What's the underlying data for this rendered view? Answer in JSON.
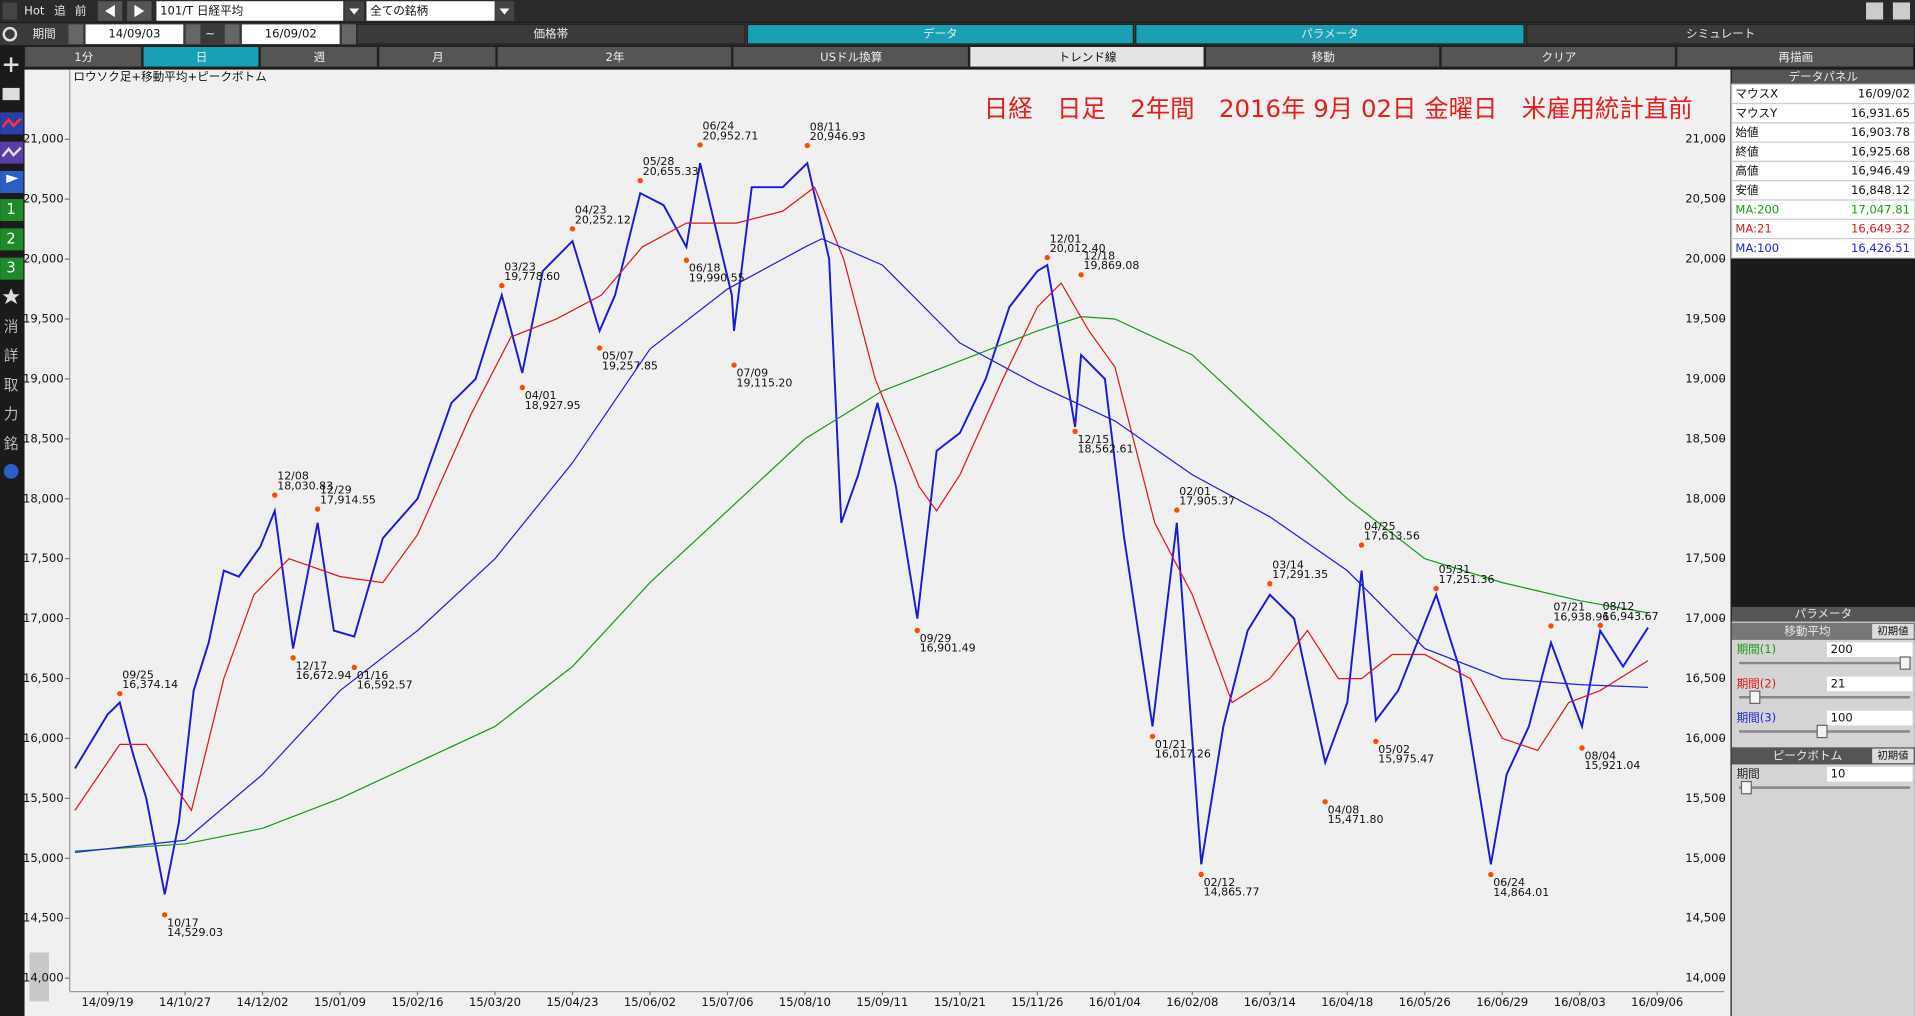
{
  "toolbar": {
    "hot": "Hot",
    "chase": "追",
    "prev": "前",
    "symbol": "101/T 日経平均",
    "universe": "全ての銘柄",
    "period_label": "期間",
    "from": "14/09/03",
    "tilde": "~",
    "to": "16/09/02",
    "tabs": [
      "価格帯",
      "データ",
      "パラメータ",
      "シミュレート"
    ],
    "buttons": [
      "1分",
      "日",
      "週",
      "月",
      "2年",
      "USドル換算",
      "トレンド線",
      "移動",
      "クリア",
      "再描画"
    ]
  },
  "sidebar": [
    "1",
    "2",
    "3",
    "消",
    "詳",
    "取",
    "力",
    "銘"
  ],
  "chart_data": {
    "type": "line",
    "caption": "ロウソク足+移動平均+ピークボトム",
    "title": "日経　日足　2年間　2016年 9月 02日 金曜日　米雇用統計直前",
    "ylim": [
      13888,
      21581
    ],
    "yticks": [
      {
        "value": 14000,
        "label": "14,000"
      },
      {
        "value": 14500,
        "label": "14,500"
      },
      {
        "value": 15000,
        "label": "15,000"
      },
      {
        "value": 15500,
        "label": "15,500"
      },
      {
        "value": 16000,
        "label": "16,000"
      },
      {
        "value": 16500,
        "label": "16,500"
      },
      {
        "value": 17000,
        "label": "17,000"
      },
      {
        "value": 17500,
        "label": "17,500"
      },
      {
        "value": 18000,
        "label": "18,000"
      },
      {
        "value": 18500,
        "label": "18,500"
      },
      {
        "value": 19000,
        "label": "19,000"
      },
      {
        "value": 19500,
        "label": "19,500"
      },
      {
        "value": 20000,
        "label": "20,000"
      },
      {
        "value": 20500,
        "label": "20,500"
      },
      {
        "value": 21000,
        "label": "21,000"
      }
    ],
    "xticks": [
      "14/09/19",
      "14/10/27",
      "14/12/02",
      "15/01/09",
      "15/02/16",
      "15/03/20",
      "15/04/23",
      "15/06/02",
      "15/07/06",
      "15/08/10",
      "15/09/11",
      "15/10/21",
      "15/11/26",
      "16/01/04",
      "16/02/08",
      "16/03/14",
      "16/04/18",
      "16/05/26",
      "16/06/29",
      "16/08/03",
      "16/09/06"
    ],
    "series": [
      {
        "color": "#1a1ad8",
        "x": [
          "14/09/03",
          "14/09/19",
          "14/09/25",
          "14/10/01",
          "14/10/08",
          "14/10/17",
          "14/10/24",
          "14/10/31",
          "14/11/07",
          "14/11/14",
          "14/11/21",
          "14/12/01",
          "14/12/08",
          "14/12/17",
          "14/12/29",
          "15/01/06",
          "15/01/16",
          "15/01/30",
          "15/02/16",
          "15/03/02",
          "15/03/12",
          "15/03/23",
          "15/04/01",
          "15/04/10",
          "15/04/23",
          "15/05/07",
          "15/05/15",
          "15/05/28",
          "15/06/08",
          "15/06/18",
          "15/06/24",
          "15/07/08",
          "15/07/09",
          "15/07/17",
          "15/07/31",
          "15/08/11",
          "15/08/20",
          "15/08/25",
          "15/09/01",
          "15/09/09",
          "15/09/18",
          "15/09/29",
          "15/10/09",
          "15/10/21",
          "15/11/02",
          "15/11/13",
          "15/11/26",
          "15/12/01",
          "15/12/15",
          "15/12/18",
          "15/12/30",
          "16/01/08",
          "16/01/21",
          "16/02/01",
          "16/02/12",
          "16/02/22",
          "16/03/04",
          "16/03/14",
          "16/03/25",
          "16/04/08",
          "16/04/18",
          "16/04/25",
          "16/05/02",
          "16/05/13",
          "16/05/31",
          "16/06/10",
          "16/06/24",
          "16/07/01",
          "16/07/11",
          "16/07/21",
          "16/08/04",
          "16/08/12",
          "16/08/22",
          "16/09/02"
        ],
        "values": [
          15750,
          16200,
          16300,
          15900,
          15500,
          14700,
          15300,
          16400,
          16800,
          17400,
          17350,
          17600,
          17900,
          16750,
          17800,
          16900,
          16850,
          17670,
          18000,
          18800,
          19000,
          19700,
          19050,
          19900,
          20150,
          19400,
          19700,
          20550,
          20450,
          20100,
          20800,
          19700,
          19400,
          20600,
          20600,
          20800,
          20000,
          17800,
          18200,
          18800,
          18100,
          17000,
          18400,
          18550,
          19000,
          19600,
          19900,
          19950,
          18600,
          19200,
          19000,
          17700,
          16100,
          17800,
          14950,
          16100,
          16900,
          17200,
          17000,
          15800,
          16300,
          17400,
          16150,
          16400,
          17200,
          16600,
          14950,
          15700,
          16100,
          16800,
          16100,
          16900,
          16600,
          16925.68
        ]
      },
      {
        "name": "MA:200",
        "color": "#1a9a1a",
        "x": [
          "14/09/03",
          "14/10/27",
          "14/12/02",
          "15/01/09",
          "15/02/16",
          "15/03/20",
          "15/04/23",
          "15/06/02",
          "15/07/06",
          "15/08/10",
          "15/09/11",
          "15/10/21",
          "15/11/26",
          "15/12/18",
          "16/01/04",
          "16/02/08",
          "16/03/14",
          "16/04/18",
          "16/05/26",
          "16/06/29",
          "16/08/03",
          "16/09/02"
        ],
        "values": [
          15060,
          15120,
          15250,
          15500,
          15800,
          16100,
          16600,
          17300,
          17900,
          18500,
          18900,
          19150,
          19400,
          19520,
          19500,
          19200,
          18600,
          18000,
          17500,
          17300,
          17150,
          17047.81
        ]
      },
      {
        "name": "MA:21",
        "color": "#e01818",
        "x": [
          "14/09/03",
          "14/09/25",
          "14/10/08",
          "14/10/30",
          "14/11/14",
          "14/11/28",
          "14/12/15",
          "15/01/09",
          "15/01/30",
          "15/02/16",
          "15/03/10",
          "15/03/27",
          "15/04/16",
          "15/05/08",
          "15/05/29",
          "15/06/18",
          "15/07/10",
          "15/07/31",
          "15/08/14",
          "15/08/26",
          "15/09/08",
          "15/09/30",
          "15/10/09",
          "15/10/21",
          "15/11/10",
          "15/11/26",
          "15/12/08",
          "15/12/22",
          "16/01/04",
          "16/01/22",
          "16/02/08",
          "16/02/26",
          "16/03/14",
          "16/03/31",
          "16/04/14",
          "16/04/25",
          "16/05/10",
          "16/05/26",
          "16/06/15",
          "16/06/29",
          "16/07/15",
          "16/07/29",
          "16/08/12",
          "16/09/02"
        ],
        "values": [
          15400,
          15950,
          15950,
          15400,
          16500,
          17200,
          17500,
          17350,
          17300,
          17700,
          18700,
          19350,
          19500,
          19700,
          20100,
          20300,
          20300,
          20400,
          20600,
          20000,
          19000,
          18100,
          17900,
          18200,
          19000,
          19600,
          19800,
          19400,
          19100,
          17800,
          17200,
          16300,
          16500,
          16900,
          16500,
          16500,
          16700,
          16700,
          16500,
          16000,
          15900,
          16300,
          16400,
          16649.32
        ]
      },
      {
        "name": "MA:100",
        "color": "#2020e0",
        "x": [
          "14/09/03",
          "14/10/27",
          "14/12/02",
          "15/01/09",
          "15/02/16",
          "15/03/20",
          "15/04/23",
          "15/06/02",
          "15/07/06",
          "15/08/10",
          "15/08/17",
          "15/09/11",
          "15/10/21",
          "15/11/26",
          "16/01/04",
          "16/02/08",
          "16/03/14",
          "16/04/18",
          "16/05/26",
          "16/06/29",
          "16/08/03",
          "16/09/02"
        ],
        "values": [
          15050,
          15150,
          15700,
          16400,
          16900,
          17500,
          18300,
          19250,
          19750,
          20100,
          20170,
          19950,
          19300,
          18950,
          18650,
          18200,
          17850,
          17400,
          16750,
          16500,
          16450,
          16426.51
        ]
      }
    ],
    "marker_color": "#ff4a00",
    "annotations": [
      {
        "x": "14/09/25",
        "date": "09/25",
        "value": 16374.14,
        "value_label": "16,374.14"
      },
      {
        "x": "14/10/17",
        "date": "10/17",
        "value": 14529.03,
        "value_label": "14,529.03"
      },
      {
        "x": "14/12/08",
        "date": "12/08",
        "value": 18030.83,
        "value_label": "18,030.83"
      },
      {
        "x": "14/12/17",
        "date": "12/17",
        "value": 16672.94,
        "value_label": "16,672.94"
      },
      {
        "x": "14/12/29",
        "date": "12/29",
        "value": 17914.55,
        "value_label": "17,914.55"
      },
      {
        "x": "15/01/16",
        "date": "01/16",
        "value": 16592.57,
        "value_label": "16,592.57"
      },
      {
        "x": "15/03/23",
        "date": "03/23",
        "value": 19778.6,
        "value_label": "19,778.60"
      },
      {
        "x": "15/04/01",
        "date": "04/01",
        "value": 18927.95,
        "value_label": "18,927.95"
      },
      {
        "x": "15/04/23",
        "date": "04/23",
        "value": 20252.12,
        "value_label": "20,252.12"
      },
      {
        "x": "15/05/07",
        "date": "05/07",
        "value": 19257.85,
        "value_label": "19,257.85"
      },
      {
        "x": "15/05/28",
        "date": "05/28",
        "value": 20655.33,
        "value_label": "20,655.33"
      },
      {
        "x": "15/06/18",
        "date": "06/18",
        "value": 19990.55,
        "value_label": "19,990.55"
      },
      {
        "x": "15/06/24",
        "date": "06/24",
        "value": 20952.71,
        "value_label": "20,952.71"
      },
      {
        "x": "15/07/09",
        "date": "07/09",
        "value": 19115.2,
        "value_label": "19,115.20"
      },
      {
        "x": "15/08/11",
        "date": "08/11",
        "value": 20946.93,
        "value_label": "20,946.93"
      },
      {
        "x": "15/09/29",
        "date": "09/29",
        "value": 16901.49,
        "value_label": "16,901.49"
      },
      {
        "x": "15/12/01",
        "date": "12/01",
        "value": 20012.4,
        "value_label": "20,012.40"
      },
      {
        "x": "15/12/15",
        "date": "12/15",
        "value": 18562.61,
        "value_label": "18,562.61"
      },
      {
        "x": "15/12/18",
        "date": "12/18",
        "value": 19869.08,
        "value_label": "19,869.08"
      },
      {
        "x": "16/01/21",
        "date": "01/21",
        "value": 16017.26,
        "value_label": "16,017.26"
      },
      {
        "x": "16/02/01",
        "date": "02/01",
        "value": 17905.37,
        "value_label": "17,905.37"
      },
      {
        "x": "16/02/12",
        "date": "02/12",
        "value": 14865.77,
        "value_label": "14,865.77"
      },
      {
        "x": "16/03/14",
        "date": "03/14",
        "value": 17291.35,
        "value_label": "17,291.35"
      },
      {
        "x": "16/04/08",
        "date": "04/08",
        "value": 15471.8,
        "value_label": "15,471.80"
      },
      {
        "x": "16/04/25",
        "date": "04/25",
        "value": 17613.56,
        "value_label": "17,613.56"
      },
      {
        "x": "16/05/02",
        "date": "05/02",
        "value": 15975.47,
        "value_label": "15,975.47"
      },
      {
        "x": "16/05/31",
        "date": "05/31",
        "value": 17251.36,
        "value_label": "17,251.36"
      },
      {
        "x": "16/06/24",
        "date": "06/24",
        "value": 14864.01,
        "value_label": "14,864.01"
      },
      {
        "x": "16/07/21",
        "date": "07/21",
        "value": 16938.96,
        "value_label": "16,938.96"
      },
      {
        "x": "16/08/04",
        "date": "08/04",
        "value": 15921.04,
        "value_label": "15,921.04"
      },
      {
        "x": "16/08/12",
        "date": "08/12",
        "value": 16943.67,
        "value_label": "16,943.67"
      }
    ]
  },
  "data_panel": {
    "title": "データパネル",
    "rows": [
      {
        "label": "マウスX",
        "value": "16/09/02"
      },
      {
        "label": "マウスY",
        "value": "16,931.65"
      },
      {
        "label": "始値",
        "value": "16,903.78"
      },
      {
        "label": "終値",
        "value": "16,925.68"
      },
      {
        "label": "高値",
        "value": "16,946.49"
      },
      {
        "label": "安値",
        "value": "16,848.12"
      },
      {
        "label": "MA:200",
        "value": "17,047.81",
        "color": "#1a9a1a"
      },
      {
        "label": "MA:21",
        "value": "16,649.32",
        "color": "#e01818"
      },
      {
        "label": "MA:100",
        "value": "16,426.51",
        "color": "#2020e0"
      }
    ]
  },
  "parameter_panel": {
    "title": "パラメータ",
    "sections": [
      {
        "title": "移動平均",
        "reset": "初期値",
        "params": [
          {
            "label": "期間(1)",
            "value": 200,
            "color": "#1a9a1a"
          },
          {
            "label": "期間(2)",
            "value": 21,
            "color": "#e01818"
          },
          {
            "label": "期間(3)",
            "value": 100,
            "color": "#2020e0"
          }
        ]
      },
      {
        "title": "ピークボトム",
        "reset": "初期値",
        "params": [
          {
            "label": "期間",
            "value": 10,
            "color": "#222"
          }
        ]
      }
    ]
  }
}
